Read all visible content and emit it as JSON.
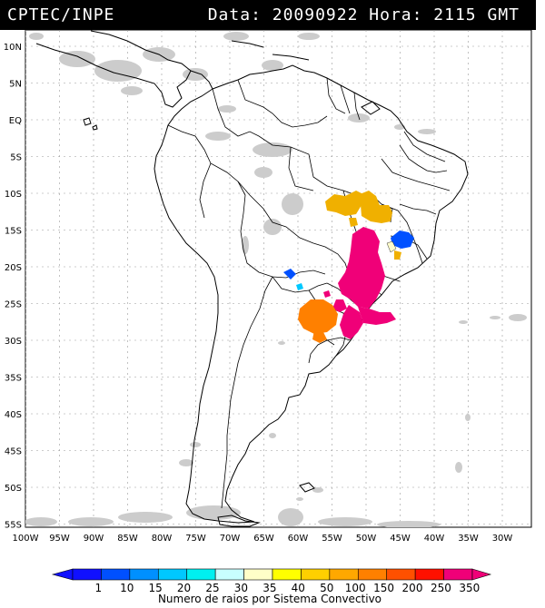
{
  "header": {
    "source": "CPTEC/INPE",
    "datetime": "Data: 20090922 Hora: 2115 GMT"
  },
  "map": {
    "lon_range": [
      -100,
      -25
    ],
    "lat_range": [
      -56,
      12
    ],
    "lat_labels": [
      "10N",
      "5N",
      "EQ",
      "5S",
      "10S",
      "15S",
      "20S",
      "25S",
      "30S",
      "35S",
      "40S",
      "45S",
      "50S",
      "55S"
    ],
    "lat_values": [
      10,
      5,
      0,
      -5,
      -10,
      -15,
      -20,
      -25,
      -30,
      -35,
      -40,
      -45,
      -50,
      -55
    ],
    "lon_labels": [
      "100W",
      "95W",
      "90W",
      "85W",
      "80W",
      "75W",
      "70W",
      "65W",
      "60W",
      "55W",
      "50W",
      "45W",
      "40W",
      "35W",
      "30W"
    ],
    "lon_values": [
      -100,
      -95,
      -90,
      -85,
      -80,
      -75,
      -70,
      -65,
      -60,
      -55,
      -50,
      -45,
      -40,
      -35,
      -30
    ],
    "coastline_color": "#000000",
    "grid_color": "#9a9a9a",
    "cloud_color": "#c8c8c8",
    "storm_colors": {
      "orange": "#ff8000",
      "yellow_orange": "#f0b000",
      "magenta": "#f00078",
      "blue": "#0050ff",
      "light_yellow": "#fffccc"
    }
  },
  "legend": {
    "ticks": [
      "1",
      "10",
      "15",
      "20",
      "25",
      "30",
      "35",
      "40",
      "50",
      "100",
      "150",
      "200",
      "250",
      "350"
    ],
    "colors": [
      "#1010ff",
      "#0050ff",
      "#0090ff",
      "#00c8ff",
      "#00f0f0",
      "#c8ffff",
      "#ffffc8",
      "#ffff00",
      "#ffd000",
      "#ffa800",
      "#ff8000",
      "#ff5000",
      "#ff1000",
      "#f00078"
    ],
    "caption": "Numero de raios por Sistema Convectivo"
  }
}
